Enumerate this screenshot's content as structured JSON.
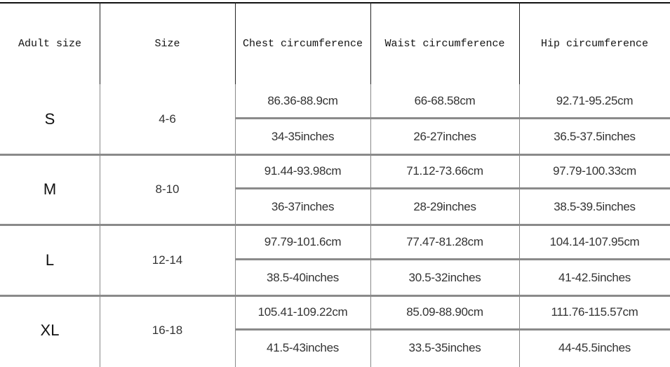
{
  "headers": [
    "Adult size",
    "Size",
    "Chest circumference",
    "Waist circumference",
    "Hip circumference"
  ],
  "rows": [
    {
      "adult_size": "S",
      "size": "4-6",
      "chest_cm": "86.36-88.9cm",
      "chest_in": "34-35inches",
      "waist_cm": "66-68.58cm",
      "waist_in": "26-27inches",
      "hip_cm": "92.71-95.25cm",
      "hip_in": "36.5-37.5inches"
    },
    {
      "adult_size": "M",
      "size": "8-10",
      "chest_cm": "91.44-93.98cm",
      "chest_in": "36-37inches",
      "waist_cm": "71.12-73.66cm",
      "waist_in": "28-29inches",
      "hip_cm": "97.79-100.33cm",
      "hip_in": "38.5-39.5inches"
    },
    {
      "adult_size": "L",
      "size": "12-14",
      "chest_cm": "97.79-101.6cm",
      "chest_in": "38.5-40inches",
      "waist_cm": "77.47-81.28cm",
      "waist_in": "30.5-32inches",
      "hip_cm": "104.14-107.95cm",
      "hip_in": "41-42.5inches"
    },
    {
      "adult_size": "XL",
      "size": "16-18",
      "chest_cm": "105.41-109.22cm",
      "chest_in": "41.5-43inches",
      "waist_cm": "85.09-88.90cm",
      "waist_in": "33.5-35inches",
      "hip_cm": "111.76-115.57cm",
      "hip_in": "44-45.5inches"
    }
  ]
}
